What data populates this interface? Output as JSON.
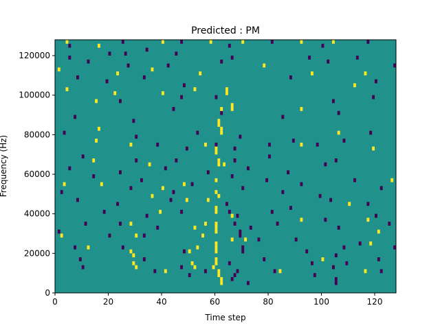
{
  "chart_data": {
    "type": "heatmap",
    "title": "Predicted : PM",
    "xlabel": "Time step",
    "ylabel": "Frequency (Hz)",
    "xlim": [
      0,
      128
    ],
    "ylim": [
      0,
      128000
    ],
    "x_ticks": [
      0,
      20,
      40,
      60,
      80,
      100,
      120
    ],
    "x_tick_labels": [
      "0",
      "20",
      "40",
      "60",
      "80",
      "100",
      "120"
    ],
    "y_ticks": [
      0,
      20000,
      40000,
      60000,
      80000,
      100000,
      120000
    ],
    "y_tick_labels": [
      "0",
      "20000",
      "40000",
      "60000",
      "80000",
      "100000",
      "120000"
    ],
    "colormap": "viridis",
    "colors": {
      "background": "#21918c",
      "high": "#fde725",
      "low": "#440154"
    },
    "background_value": 0,
    "cells_note_values": {
      "high": 1,
      "low": -1
    },
    "cell_width_time_steps": 1,
    "cell_height_hz": 2000,
    "high_cells": [
      [
        4,
        126000
      ],
      [
        16,
        124000
      ],
      [
        40,
        126000
      ],
      [
        58,
        126000
      ],
      [
        70,
        126000
      ],
      [
        92,
        126000
      ],
      [
        104,
        126000
      ],
      [
        1,
        112000
      ],
      [
        23,
        110000
      ],
      [
        36,
        112000
      ],
      [
        54,
        110000
      ],
      [
        78,
        114000
      ],
      [
        96,
        110000
      ],
      [
        116,
        110000
      ],
      [
        4,
        102000
      ],
      [
        22,
        100000
      ],
      [
        40,
        100000
      ],
      [
        52,
        102000
      ],
      [
        64,
        102000
      ],
      [
        64,
        100000
      ],
      [
        112,
        104000
      ],
      [
        15,
        96000
      ],
      [
        66,
        94000
      ],
      [
        66,
        92000
      ],
      [
        62,
        92000
      ],
      [
        92,
        92000
      ],
      [
        16,
        82000
      ],
      [
        61,
        86000
      ],
      [
        61,
        84000
      ],
      [
        62,
        82000
      ],
      [
        62,
        80000
      ],
      [
        106,
        80000
      ],
      [
        15,
        76000
      ],
      [
        28,
        74000
      ],
      [
        56,
        74000
      ],
      [
        60,
        72000
      ],
      [
        60,
        70000
      ],
      [
        92,
        74000
      ],
      [
        119,
        72000
      ],
      [
        14,
        66000
      ],
      [
        35,
        64000
      ],
      [
        61,
        66000
      ],
      [
        61,
        64000
      ],
      [
        63,
        64000
      ],
      [
        3,
        54000
      ],
      [
        17,
        54000
      ],
      [
        40,
        52000
      ],
      [
        48,
        54000
      ],
      [
        60,
        56000
      ],
      [
        126,
        56000
      ],
      [
        36,
        48000
      ],
      [
        49,
        46000
      ],
      [
        57,
        46000
      ],
      [
        60,
        50000
      ],
      [
        61,
        48000
      ],
      [
        110,
        44000
      ],
      [
        39,
        40000
      ],
      [
        60,
        42000
      ],
      [
        60,
        40000
      ],
      [
        66,
        38000
      ],
      [
        92,
        36000
      ],
      [
        117,
        36000
      ],
      [
        28,
        34000
      ],
      [
        52,
        32000
      ],
      [
        56,
        34000
      ],
      [
        60,
        34000
      ],
      [
        60,
        32000
      ],
      [
        60,
        30000
      ],
      [
        121,
        30000
      ],
      [
        2,
        28000
      ],
      [
        30,
        28000
      ],
      [
        55,
        28000
      ],
      [
        66,
        26000
      ],
      [
        71,
        26000
      ],
      [
        118,
        24000
      ],
      [
        12,
        22000
      ],
      [
        28,
        20000
      ],
      [
        29,
        18000
      ],
      [
        50,
        20000
      ],
      [
        53,
        22000
      ],
      [
        60,
        24000
      ],
      [
        60,
        22000
      ],
      [
        60,
        20000
      ],
      [
        100,
        16000
      ],
      [
        29,
        14000
      ],
      [
        30,
        12000
      ],
      [
        41,
        10000
      ],
      [
        51,
        14000
      ],
      [
        52,
        12000
      ],
      [
        60,
        16000
      ],
      [
        60,
        14000
      ],
      [
        59,
        12000
      ],
      [
        61,
        10000
      ],
      [
        61,
        8000
      ],
      [
        62,
        6000
      ],
      [
        62,
        4000
      ],
      [
        84,
        10000
      ],
      [
        116,
        10000
      ]
    ],
    "low_cells": [
      [
        5,
        124000
      ],
      [
        25,
        126000
      ],
      [
        34,
        122000
      ],
      [
        47,
        126000
      ],
      [
        65,
        124000
      ],
      [
        81,
        126000
      ],
      [
        100,
        124000
      ],
      [
        117,
        126000
      ],
      [
        5,
        118000
      ],
      [
        20,
        120000
      ],
      [
        26,
        120000
      ],
      [
        45,
        120000
      ],
      [
        66,
        118000
      ],
      [
        95,
        118000
      ],
      [
        113,
        118000
      ],
      [
        12,
        116000
      ],
      [
        27,
        114000
      ],
      [
        42,
        114000
      ],
      [
        62,
        116000
      ],
      [
        102,
        116000
      ],
      [
        127,
        114000
      ],
      [
        8,
        108000
      ],
      [
        19,
        106000
      ],
      [
        33,
        108000
      ],
      [
        48,
        104000
      ],
      [
        88,
        108000
      ],
      [
        120,
        106000
      ],
      [
        24,
        96000
      ],
      [
        47,
        98000
      ],
      [
        60,
        98000
      ],
      [
        104,
        96000
      ],
      [
        119,
        98000
      ],
      [
        7,
        88000
      ],
      [
        29,
        86000
      ],
      [
        44,
        92000
      ],
      [
        62,
        90000
      ],
      [
        85,
        88000
      ],
      [
        106,
        90000
      ],
      [
        3,
        80000
      ],
      [
        30,
        78000
      ],
      [
        53,
        80000
      ],
      [
        69,
        78000
      ],
      [
        108,
        76000
      ],
      [
        118,
        80000
      ],
      [
        38,
        74000
      ],
      [
        49,
        72000
      ],
      [
        60,
        74000
      ],
      [
        67,
        72000
      ],
      [
        80,
        74000
      ],
      [
        89,
        76000
      ],
      [
        98,
        74000
      ],
      [
        10,
        68000
      ],
      [
        30,
        66000
      ],
      [
        45,
        66000
      ],
      [
        67,
        66000
      ],
      [
        80,
        68000
      ],
      [
        105,
        66000
      ],
      [
        5,
        62000
      ],
      [
        24,
        60000
      ],
      [
        41,
        62000
      ],
      [
        57,
        60000
      ],
      [
        72,
        62000
      ],
      [
        87,
        60000
      ],
      [
        101,
        64000
      ],
      [
        14,
        58000
      ],
      [
        32,
        56000
      ],
      [
        51,
        54000
      ],
      [
        66,
        58000
      ],
      [
        79,
        56000
      ],
      [
        92,
        54000
      ],
      [
        112,
        56000
      ],
      [
        2,
        50000
      ],
      [
        28,
        52000
      ],
      [
        44,
        50000
      ],
      [
        70,
        52000
      ],
      [
        85,
        50000
      ],
      [
        99,
        48000
      ],
      [
        122,
        52000
      ],
      [
        8,
        46000
      ],
      [
        23,
        44000
      ],
      [
        43,
        46000
      ],
      [
        64,
        44000
      ],
      [
        88,
        42000
      ],
      [
        103,
        46000
      ],
      [
        117,
        44000
      ],
      [
        18,
        40000
      ],
      [
        34,
        38000
      ],
      [
        47,
        40000
      ],
      [
        65,
        40000
      ],
      [
        68,
        38000
      ],
      [
        81,
        40000
      ],
      [
        101,
        36000
      ],
      [
        120,
        38000
      ],
      [
        11,
        34000
      ],
      [
        24,
        34000
      ],
      [
        38,
        32000
      ],
      [
        67,
        34000
      ],
      [
        73,
        32000
      ],
      [
        83,
        34000
      ],
      [
        106,
        32000
      ],
      [
        125,
        34000
      ],
      [
        1,
        30000
      ],
      [
        20,
        28000
      ],
      [
        33,
        28000
      ],
      [
        69,
        30000
      ],
      [
        69,
        28000
      ],
      [
        76,
        26000
      ],
      [
        90,
        26000
      ],
      [
        114,
        24000
      ],
      [
        7,
        22000
      ],
      [
        25,
        22000
      ],
      [
        48,
        20000
      ],
      [
        70,
        22000
      ],
      [
        70,
        20000
      ],
      [
        94,
        20000
      ],
      [
        108,
        22000
      ],
      [
        127,
        22000
      ],
      [
        9,
        16000
      ],
      [
        33,
        16000
      ],
      [
        47,
        12000
      ],
      [
        65,
        14000
      ],
      [
        78,
        16000
      ],
      [
        96,
        14000
      ],
      [
        105,
        18000
      ],
      [
        121,
        16000
      ],
      [
        10,
        12000
      ],
      [
        37,
        10000
      ],
      [
        68,
        10000
      ],
      [
        82,
        10000
      ],
      [
        104,
        12000
      ],
      [
        109,
        14000
      ],
      [
        50,
        8000
      ],
      [
        56,
        10000
      ],
      [
        66,
        6000
      ],
      [
        67,
        8000
      ],
      [
        72,
        4000
      ],
      [
        97,
        8000
      ],
      [
        105,
        6000
      ],
      [
        105,
        4000
      ],
      [
        122,
        10000
      ]
    ]
  }
}
